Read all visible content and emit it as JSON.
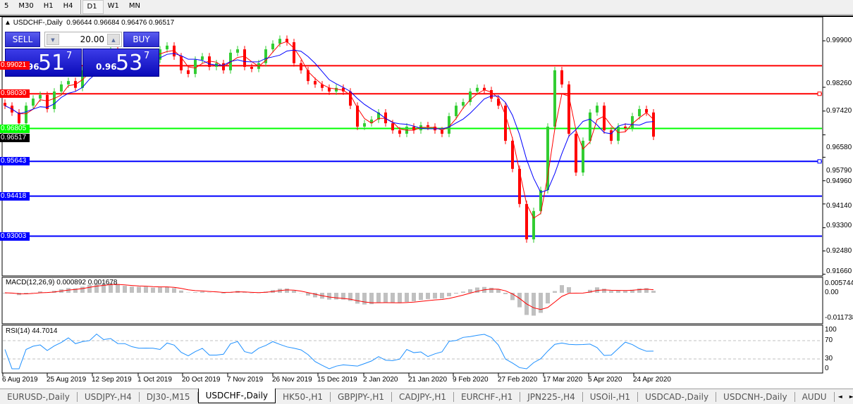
{
  "timeframes": [
    "5",
    "M30",
    "H1",
    "H4",
    "D1",
    "W1",
    "MN"
  ],
  "selected_timeframe": "D1",
  "chart": {
    "symbol": "USDCHF-,Daily",
    "ohlc": "0.96644 0.96684 0.96476 0.96517"
  },
  "trade_panel": {
    "sell_label": "SELL",
    "buy_label": "BUY",
    "lot": "20.00",
    "sell_prefix": "0.96",
    "sell_main": "51",
    "sell_pip": "7",
    "buy_prefix": "0.96",
    "buy_main": "53",
    "buy_pip": "7"
  },
  "price_axis": [
    "0.99900",
    "0.98260",
    "0.97420",
    "0.96580",
    "0.95790",
    "0.94960",
    "0.94140",
    "0.93300",
    "0.92480",
    "0.91660"
  ],
  "levels": [
    {
      "price": "0.99021",
      "color": "#ff0000"
    },
    {
      "price": "0.98030",
      "color": "#ff0000"
    },
    {
      "price": "0.96805",
      "color": "#00ff00"
    },
    {
      "price": "0.95643",
      "color": "#0000ff"
    },
    {
      "price": "0.94418",
      "color": "#0000ff"
    },
    {
      "price": "0.93003",
      "color": "#0000ff"
    }
  ],
  "current_price": "0.96517",
  "macd": {
    "label": "MACD(12,26,9) 0.000892 0.001678",
    "axis": [
      "0.005744",
      "0.00",
      "-0.011738"
    ]
  },
  "rsi": {
    "label": "RSI(14) 44.7014",
    "axis": [
      "100",
      "70",
      "30",
      "0"
    ]
  },
  "date_axis": [
    "6 Aug 2019",
    "25 Aug 2019",
    "12 Sep 2019",
    "1 Oct 2019",
    "20 Oct 2019",
    "7 Nov 2019",
    "26 Nov 2019",
    "15 Dec 2019",
    "2 Jan 2020",
    "21 Jan 2020",
    "9 Feb 2020",
    "27 Feb 2020",
    "17 Mar 2020",
    "5 Apr 2020",
    "24 Apr 2020"
  ],
  "tabs": [
    "EURUSD-,Daily",
    "USDJPY-,H4",
    "DJ30-,M15",
    "USDCHF-,Daily",
    "HK50-,H1",
    "GBPJPY-,H1",
    "CADJPY-,H1",
    "EURCHF-,H1",
    "JPN225-,H4",
    "USOil-,H1",
    "USDCAD-,Daily",
    "USDCNH-,Daily",
    "AUDU"
  ],
  "active_tab": "USDCHF-,Daily",
  "colors": {
    "bull": "#32cd32",
    "bear": "#ff0000",
    "ma_fast": "#ff0000",
    "ma_slow": "#0000ff",
    "macd_hist": "#c0c0c0",
    "rsi": "#1e90ff"
  },
  "chart_data": {
    "type": "candlestick",
    "approx_closes": [
      0.9761,
      0.9737,
      0.9699,
      0.9761,
      0.9786,
      0.9799,
      0.9749,
      0.9811,
      0.9836,
      0.9848,
      0.9824,
      0.9886,
      0.9923,
      0.9935,
      0.9911,
      0.996,
      0.9923,
      0.9898,
      0.9915,
      0.9935,
      0.9948,
      0.9923,
      0.996,
      0.9973,
      0.9935,
      0.9886,
      0.9873,
      0.9923,
      0.9935,
      0.9898,
      0.9911,
      0.9886,
      0.9948,
      0.996,
      0.9898,
      0.9891,
      0.9911,
      0.996,
      0.998,
      0.9997,
      0.9985,
      0.9911,
      0.9886,
      0.9848,
      0.9836,
      0.9824,
      0.9811,
      0.9824,
      0.9811,
      0.9761,
      0.9687,
      0.9699,
      0.9712,
      0.9737,
      0.9699,
      0.9674,
      0.9662,
      0.9687,
      0.9674,
      0.9692,
      0.9687,
      0.9674,
      0.9662,
      0.9724,
      0.9761,
      0.9774,
      0.9811,
      0.9824,
      0.9816,
      0.9786,
      0.9761,
      0.9637,
      0.9538,
      0.9414,
      0.9289,
      0.9389,
      0.9463,
      0.9687,
      0.9886,
      0.9836,
      0.9662,
      0.9525,
      0.9637,
      0.9737,
      0.9761,
      0.9674,
      0.9637,
      0.9687,
      0.9682,
      0.9724,
      0.9749,
      0.9737,
      0.96517
    ],
    "ylim": [
      0.9125,
      1.005
    ]
  }
}
